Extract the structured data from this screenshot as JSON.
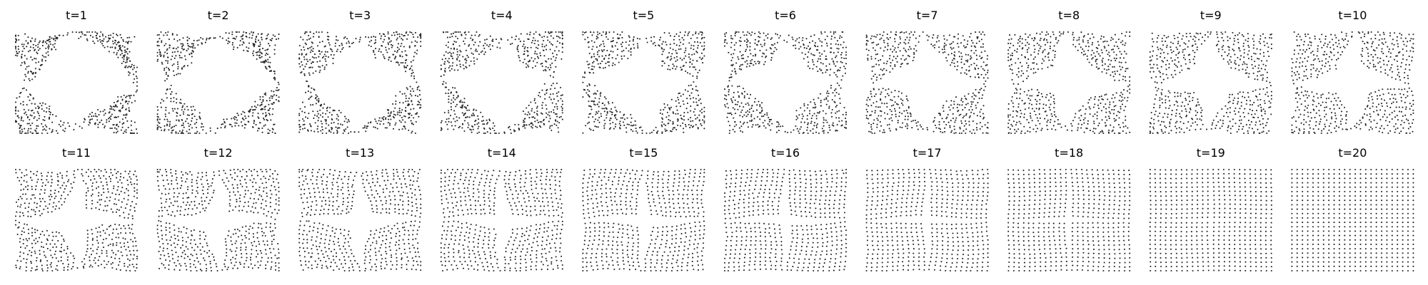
{
  "chart_data": {
    "type": "scatter",
    "layout": "small-multiples",
    "rows": 2,
    "columns": 10,
    "axes_visible": false,
    "grid": false,
    "legend": "none",
    "marker": "small dot",
    "marker_color": "#262626",
    "xlim": [
      -1,
      1
    ],
    "ylim": [
      -1,
      1
    ],
    "grid_points_per_side": 24,
    "panels": [
      {
        "title": "t=1",
        "t": 1
      },
      {
        "title": "t=2",
        "t": 2
      },
      {
        "title": "t=3",
        "t": 3
      },
      {
        "title": "t=4",
        "t": 4
      },
      {
        "title": "t=5",
        "t": 5
      },
      {
        "title": "t=6",
        "t": 6
      },
      {
        "title": "t=7",
        "t": 7
      },
      {
        "title": "t=8",
        "t": 8
      },
      {
        "title": "t=9",
        "t": 9
      },
      {
        "title": "t=10",
        "t": 10
      },
      {
        "title": "t=11",
        "t": 11
      },
      {
        "title": "t=12",
        "t": 12
      },
      {
        "title": "t=13",
        "t": 13
      },
      {
        "title": "t=14",
        "t": 14
      },
      {
        "title": "t=15",
        "t": 15
      },
      {
        "title": "t=16",
        "t": 16
      },
      {
        "title": "t=17",
        "t": 17
      },
      {
        "title": "t=18",
        "t": 18
      },
      {
        "title": "t=19",
        "t": 19
      },
      {
        "title": "t=20",
        "t": 20
      }
    ]
  }
}
